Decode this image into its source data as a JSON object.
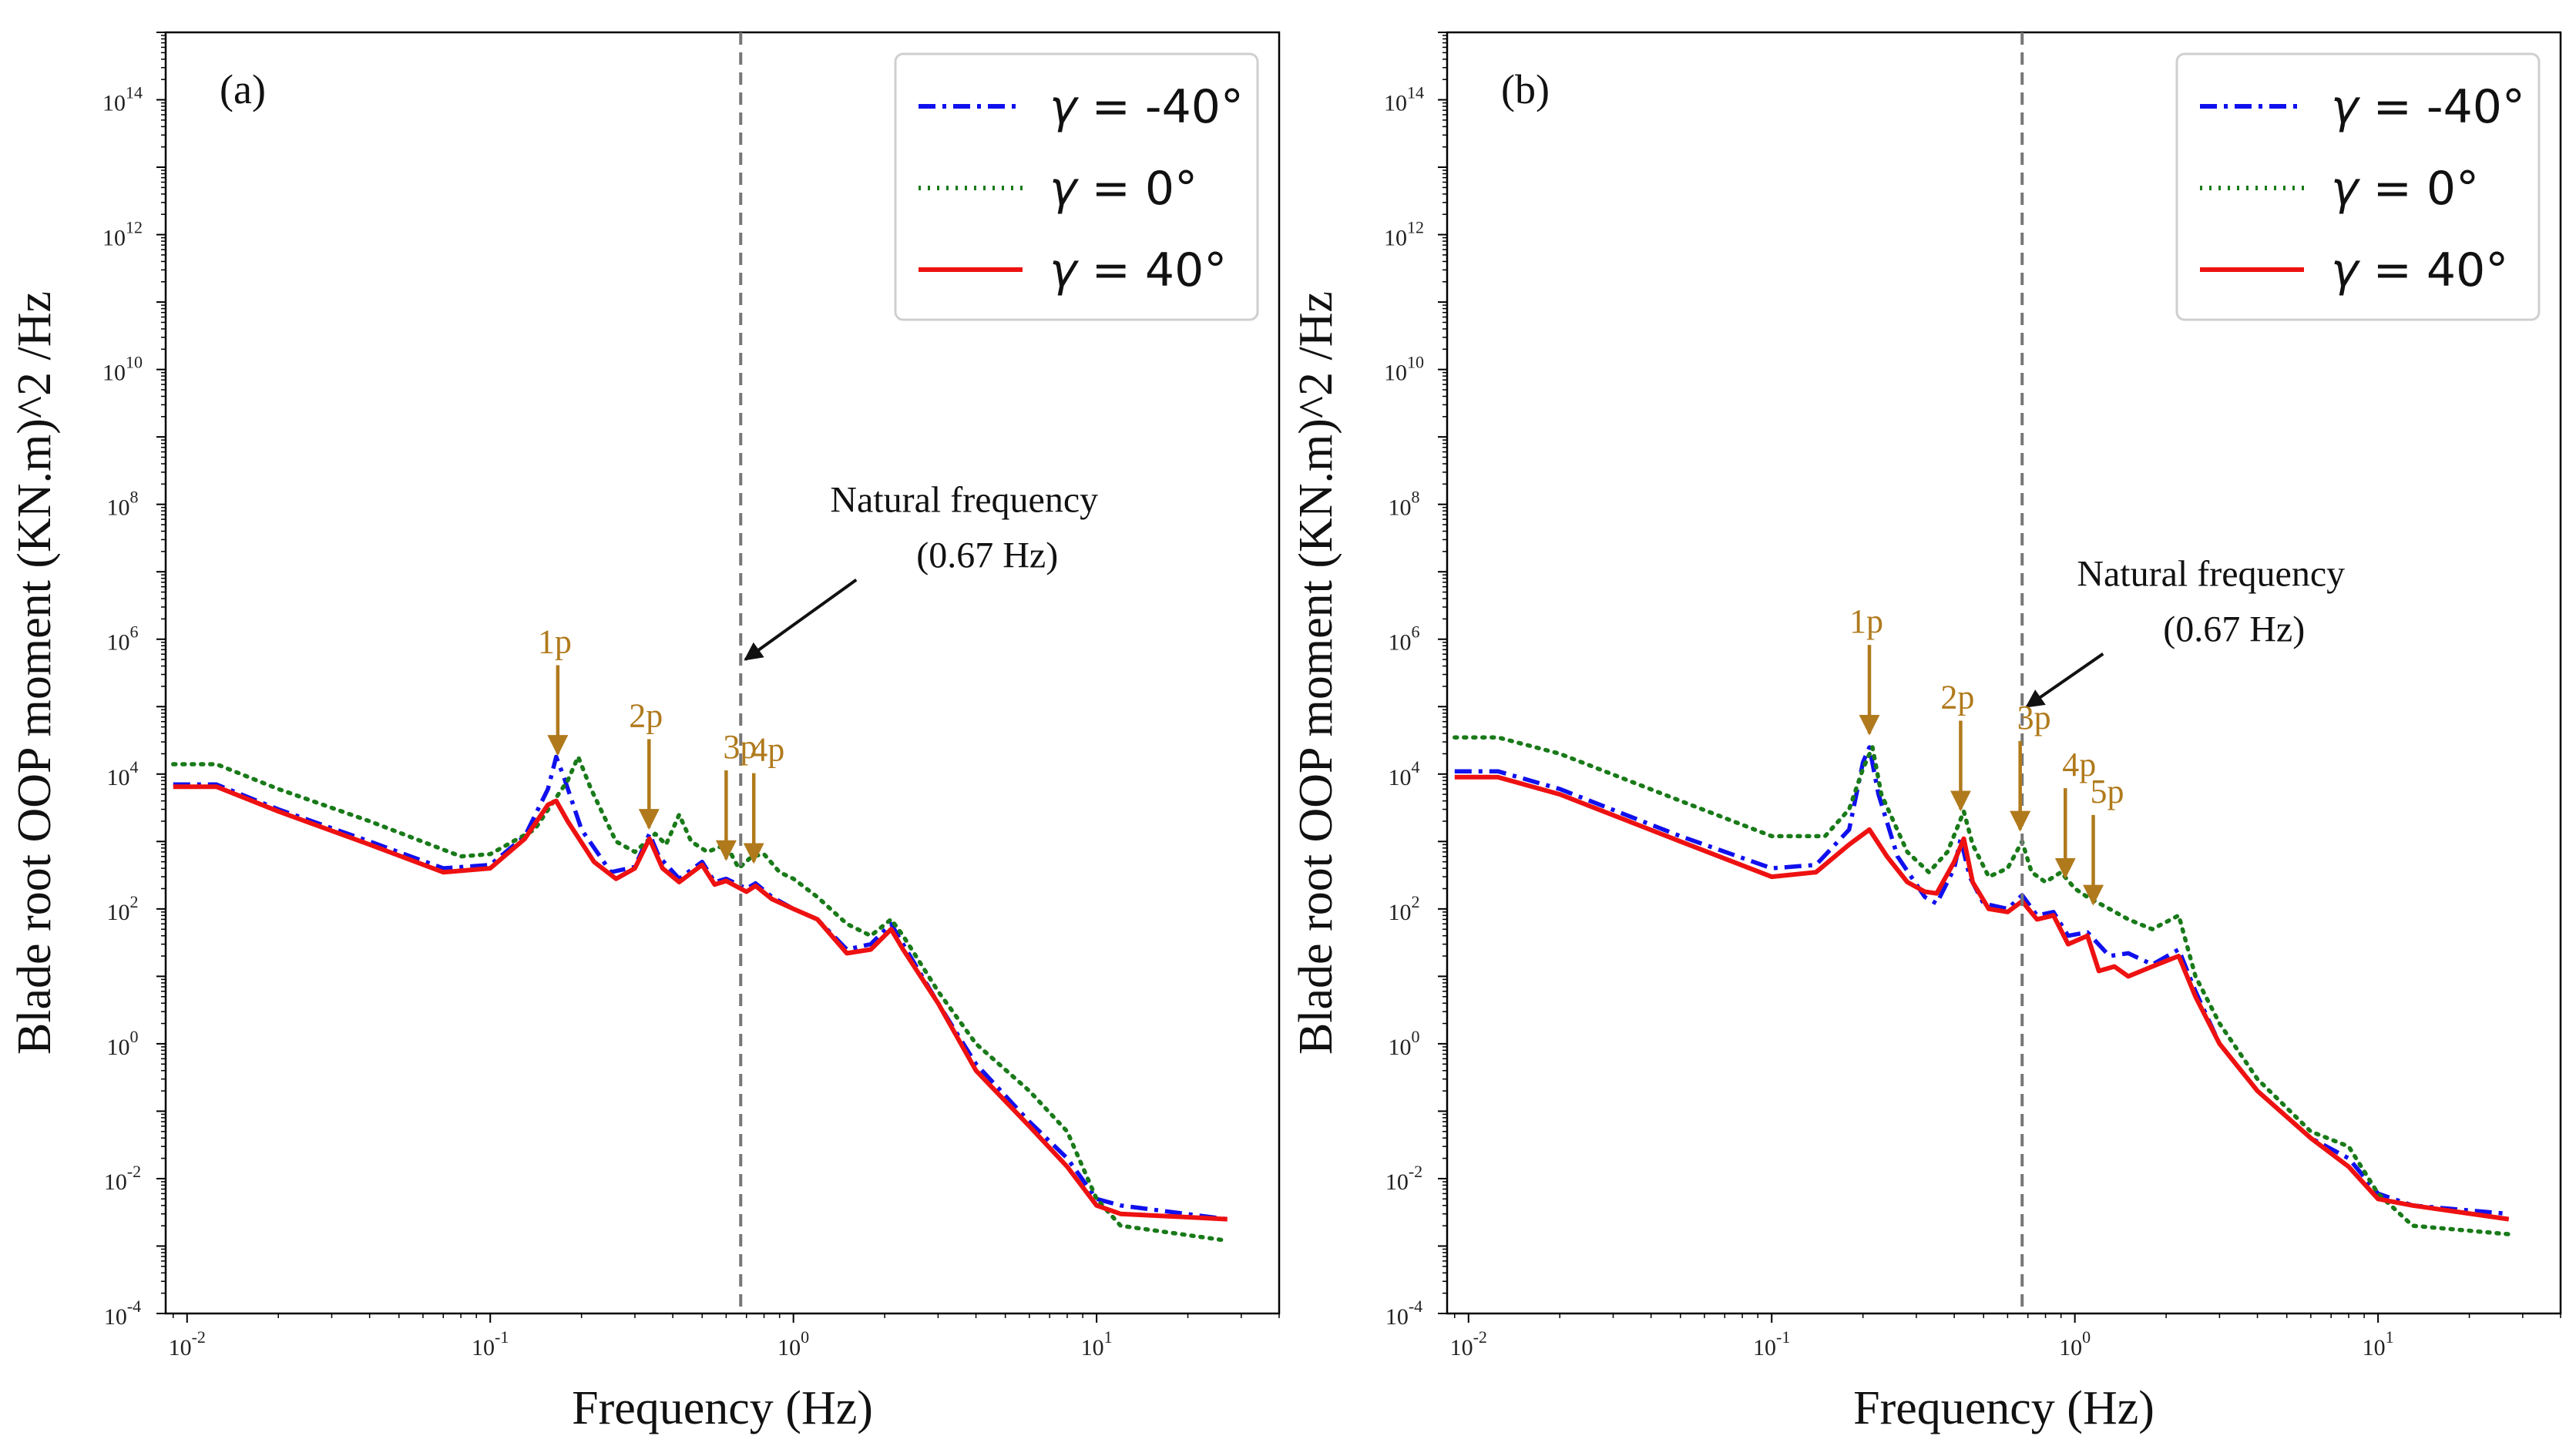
{
  "chart_data": [
    {
      "type": "line",
      "panel_label": "(a)",
      "xlabel": "Frequency (Hz)",
      "ylabel": "Blade root OOP moment (KN.m)^2 /Hz",
      "xscale": "log",
      "yscale": "log",
      "xlim": [
        0.0085,
        40
      ],
      "ylim": [
        0.0001,
        1000000000000000.0
      ],
      "xticks": [
        {
          "base": "10",
          "exp": "-2"
        },
        {
          "base": "10",
          "exp": "-1"
        },
        {
          "base": "10",
          "exp": "0"
        },
        {
          "base": "10",
          "exp": "1"
        }
      ],
      "yticks": [
        {
          "base": "10",
          "exp": "-4"
        },
        {
          "base": "10",
          "exp": "-2"
        },
        {
          "base": "10",
          "exp": "0"
        },
        {
          "base": "10",
          "exp": "2"
        },
        {
          "base": "10",
          "exp": "4"
        },
        {
          "base": "10",
          "exp": "6"
        },
        {
          "base": "10",
          "exp": "8"
        },
        {
          "base": "10",
          "exp": "10"
        },
        {
          "base": "10",
          "exp": "12"
        },
        {
          "base": "10",
          "exp": "14"
        }
      ],
      "legend": {
        "position": "top-right"
      },
      "vline": {
        "x": 0.67,
        "style": "dashed",
        "color": "#777777"
      },
      "annotation": {
        "line1": "Natural frequency",
        "line2": "(0.67 Hz)",
        "arrow_x": 0.67,
        "arrow_y": 500000
      },
      "harmonics": [
        {
          "label": "1p",
          "x": 0.167,
          "y": 20000
        },
        {
          "label": "2p",
          "x": 0.334,
          "y": 1600
        },
        {
          "label": "3p",
          "x": 0.6,
          "y": 550
        },
        {
          "label": "4p",
          "x": 0.74,
          "y": 500
        }
      ],
      "series": [
        {
          "name": "γ = -40°",
          "greek": "γ",
          "value_text": " = -40°",
          "color": "#1010ee",
          "dash": "dashdot",
          "points": [
            [
              0.009,
              7000
            ],
            [
              0.0125,
              7000
            ],
            [
              0.02,
              3000
            ],
            [
              0.04,
              1000
            ],
            [
              0.07,
              400
            ],
            [
              0.1,
              450
            ],
            [
              0.13,
              1200
            ],
            [
              0.155,
              6000
            ],
            [
              0.165,
              18000
            ],
            [
              0.175,
              9000
            ],
            [
              0.2,
              1500
            ],
            [
              0.25,
              350
            ],
            [
              0.3,
              420
            ],
            [
              0.335,
              1300
            ],
            [
              0.36,
              600
            ],
            [
              0.42,
              280
            ],
            [
              0.5,
              500
            ],
            [
              0.55,
              250
            ],
            [
              0.6,
              280
            ],
            [
              0.7,
              200
            ],
            [
              0.75,
              240
            ],
            [
              0.85,
              150
            ],
            [
              1.0,
              100
            ],
            [
              1.2,
              70
            ],
            [
              1.5,
              25
            ],
            [
              1.8,
              30
            ],
            [
              2.1,
              60
            ],
            [
              2.3,
              30
            ],
            [
              3.0,
              4
            ],
            [
              4.0,
              0.5
            ],
            [
              6.0,
              0.07
            ],
            [
              8.0,
              0.02
            ],
            [
              10.0,
              0.005
            ],
            [
              12.0,
              0.004
            ],
            [
              27.0,
              0.0025
            ]
          ]
        },
        {
          "name": "γ = 0°",
          "greek": "γ",
          "value_text": " = 0°",
          "color": "#197a19",
          "dash": "dotted",
          "points": [
            [
              0.009,
              14000
            ],
            [
              0.0125,
              14000
            ],
            [
              0.02,
              6000
            ],
            [
              0.04,
              2000
            ],
            [
              0.08,
              600
            ],
            [
              0.1,
              650
            ],
            [
              0.14,
              1500
            ],
            [
              0.18,
              8000
            ],
            [
              0.195,
              18000
            ],
            [
              0.215,
              6000
            ],
            [
              0.26,
              1000
            ],
            [
              0.3,
              700
            ],
            [
              0.35,
              1300
            ],
            [
              0.38,
              900
            ],
            [
              0.42,
              2500
            ],
            [
              0.46,
              1000
            ],
            [
              0.52,
              700
            ],
            [
              0.6,
              900
            ],
            [
              0.66,
              400
            ],
            [
              0.73,
              600
            ],
            [
              0.8,
              650
            ],
            [
              0.9,
              350
            ],
            [
              1.0,
              280
            ],
            [
              1.2,
              150
            ],
            [
              1.5,
              60
            ],
            [
              1.8,
              40
            ],
            [
              2.1,
              70
            ],
            [
              2.3,
              40
            ],
            [
              3.0,
              6
            ],
            [
              4.0,
              1
            ],
            [
              6.0,
              0.2
            ],
            [
              8.0,
              0.05
            ],
            [
              10.0,
              0.005
            ],
            [
              12.0,
              0.002
            ],
            [
              27.0,
              0.0012
            ]
          ]
        },
        {
          "name": "γ = 40°",
          "greek": "γ",
          "value_text": " = 40°",
          "color": "#ee1111",
          "dash": "solid",
          "points": [
            [
              0.009,
              6500
            ],
            [
              0.0125,
              6500
            ],
            [
              0.02,
              2800
            ],
            [
              0.04,
              900
            ],
            [
              0.07,
              350
            ],
            [
              0.1,
              400
            ],
            [
              0.13,
              1100
            ],
            [
              0.155,
              3500
            ],
            [
              0.165,
              4000
            ],
            [
              0.18,
              2000
            ],
            [
              0.22,
              500
            ],
            [
              0.26,
              280
            ],
            [
              0.3,
              400
            ],
            [
              0.335,
              1100
            ],
            [
              0.37,
              400
            ],
            [
              0.42,
              250
            ],
            [
              0.5,
              450
            ],
            [
              0.55,
              230
            ],
            [
              0.6,
              260
            ],
            [
              0.7,
              180
            ],
            [
              0.75,
              220
            ],
            [
              0.85,
              140
            ],
            [
              1.0,
              100
            ],
            [
              1.2,
              70
            ],
            [
              1.5,
              22
            ],
            [
              1.8,
              25
            ],
            [
              2.1,
              50
            ],
            [
              2.3,
              25
            ],
            [
              3.0,
              4
            ],
            [
              4.0,
              0.4
            ],
            [
              6.0,
              0.06
            ],
            [
              8.0,
              0.015
            ],
            [
              10.0,
              0.004
            ],
            [
              12.0,
              0.003
            ],
            [
              27.0,
              0.0025
            ]
          ]
        }
      ]
    },
    {
      "type": "line",
      "panel_label": "(b)",
      "xlabel": "Frequency (Hz)",
      "ylabel": "Blade root OOP moment (KN.m)^2 /Hz",
      "xscale": "log",
      "yscale": "log",
      "xlim": [
        0.0085,
        40
      ],
      "ylim": [
        0.0001,
        1000000000000000.0
      ],
      "xticks": [
        {
          "base": "10",
          "exp": "-2"
        },
        {
          "base": "10",
          "exp": "-1"
        },
        {
          "base": "10",
          "exp": "0"
        },
        {
          "base": "10",
          "exp": "1"
        }
      ],
      "yticks": [
        {
          "base": "10",
          "exp": "-4"
        },
        {
          "base": "10",
          "exp": "-2"
        },
        {
          "base": "10",
          "exp": "0"
        },
        {
          "base": "10",
          "exp": "2"
        },
        {
          "base": "10",
          "exp": "4"
        },
        {
          "base": "10",
          "exp": "6"
        },
        {
          "base": "10",
          "exp": "8"
        },
        {
          "base": "10",
          "exp": "10"
        },
        {
          "base": "10",
          "exp": "12"
        },
        {
          "base": "10",
          "exp": "14"
        }
      ],
      "legend": {
        "position": "top-right"
      },
      "vline": {
        "x": 0.67,
        "style": "dashed",
        "color": "#777777"
      },
      "annotation": {
        "line1": "Natural frequency",
        "line2": "(0.67 Hz)",
        "arrow_x": 0.67,
        "arrow_y": 100000
      },
      "harmonics": [
        {
          "label": "1p",
          "x": 0.21,
          "y": 40000
        },
        {
          "label": "2p",
          "x": 0.42,
          "y": 3000
        },
        {
          "label": "3p",
          "x": 0.66,
          "y": 1500
        },
        {
          "label": "4p",
          "x": 0.93,
          "y": 300
        },
        {
          "label": "5p",
          "x": 1.15,
          "y": 120
        }
      ],
      "series": [
        {
          "name": "γ = -40°",
          "greek": "γ",
          "value_text": " = -40°",
          "color": "#1010ee",
          "dash": "dashdot",
          "points": [
            [
              0.009,
              11000
            ],
            [
              0.0125,
              11000
            ],
            [
              0.02,
              6000
            ],
            [
              0.05,
              1200
            ],
            [
              0.1,
              400
            ],
            [
              0.14,
              450
            ],
            [
              0.18,
              1500
            ],
            [
              0.2,
              15000
            ],
            [
              0.21,
              25000
            ],
            [
              0.225,
              5000
            ],
            [
              0.26,
              600
            ],
            [
              0.32,
              150
            ],
            [
              0.35,
              120
            ],
            [
              0.4,
              400
            ],
            [
              0.42,
              1100
            ],
            [
              0.45,
              300
            ],
            [
              0.5,
              120
            ],
            [
              0.6,
              100
            ],
            [
              0.67,
              160
            ],
            [
              0.75,
              80
            ],
            [
              0.85,
              90
            ],
            [
              0.95,
              40
            ],
            [
              1.1,
              45
            ],
            [
              1.3,
              20
            ],
            [
              1.5,
              22
            ],
            [
              1.8,
              15
            ],
            [
              2.2,
              25
            ],
            [
              2.5,
              6
            ],
            [
              3.0,
              1
            ],
            [
              4.0,
              0.2
            ],
            [
              6.0,
              0.04
            ],
            [
              8.0,
              0.02
            ],
            [
              10.0,
              0.006
            ],
            [
              13.0,
              0.004
            ],
            [
              27.0,
              0.003
            ]
          ]
        },
        {
          "name": "γ = 0°",
          "greek": "γ",
          "value_text": " = 0°",
          "color": "#197a19",
          "dash": "dotted",
          "points": [
            [
              0.009,
              35000
            ],
            [
              0.0125,
              35000
            ],
            [
              0.02,
              20000
            ],
            [
              0.05,
              4000
            ],
            [
              0.1,
              1200
            ],
            [
              0.15,
              1200
            ],
            [
              0.18,
              3000
            ],
            [
              0.2,
              12000
            ],
            [
              0.215,
              25000
            ],
            [
              0.23,
              5000
            ],
            [
              0.28,
              700
            ],
            [
              0.33,
              350
            ],
            [
              0.38,
              700
            ],
            [
              0.43,
              2800
            ],
            [
              0.46,
              900
            ],
            [
              0.52,
              300
            ],
            [
              0.6,
              400
            ],
            [
              0.67,
              1000
            ],
            [
              0.72,
              350
            ],
            [
              0.8,
              250
            ],
            [
              0.9,
              350
            ],
            [
              1.0,
              200
            ],
            [
              1.1,
              150
            ],
            [
              1.3,
              100
            ],
            [
              1.5,
              70
            ],
            [
              1.8,
              50
            ],
            [
              2.2,
              80
            ],
            [
              2.5,
              10
            ],
            [
              3.0,
              2
            ],
            [
              4.0,
              0.3
            ],
            [
              6.0,
              0.05
            ],
            [
              8.0,
              0.03
            ],
            [
              10.0,
              0.006
            ],
            [
              13.0,
              0.002
            ],
            [
              27.0,
              0.0015
            ]
          ]
        },
        {
          "name": "γ = 40°",
          "greek": "γ",
          "value_text": " = 40°",
          "color": "#ee1111",
          "dash": "solid",
          "points": [
            [
              0.009,
              9000
            ],
            [
              0.0125,
              9000
            ],
            [
              0.02,
              5000
            ],
            [
              0.05,
              1000
            ],
            [
              0.1,
              300
            ],
            [
              0.14,
              350
            ],
            [
              0.18,
              900
            ],
            [
              0.21,
              1500
            ],
            [
              0.24,
              600
            ],
            [
              0.28,
              250
            ],
            [
              0.32,
              180
            ],
            [
              0.35,
              170
            ],
            [
              0.4,
              500
            ],
            [
              0.43,
              1100
            ],
            [
              0.46,
              250
            ],
            [
              0.52,
              100
            ],
            [
              0.6,
              90
            ],
            [
              0.67,
              130
            ],
            [
              0.75,
              70
            ],
            [
              0.85,
              80
            ],
            [
              0.95,
              30
            ],
            [
              1.1,
              40
            ],
            [
              1.2,
              12
            ],
            [
              1.35,
              14
            ],
            [
              1.5,
              10
            ],
            [
              1.8,
              14
            ],
            [
              2.2,
              20
            ],
            [
              2.5,
              5
            ],
            [
              3.0,
              1
            ],
            [
              4.0,
              0.2
            ],
            [
              6.0,
              0.04
            ],
            [
              8.0,
              0.015
            ],
            [
              10.0,
              0.005
            ],
            [
              13.0,
              0.004
            ],
            [
              27.0,
              0.0025
            ]
          ]
        }
      ]
    }
  ]
}
